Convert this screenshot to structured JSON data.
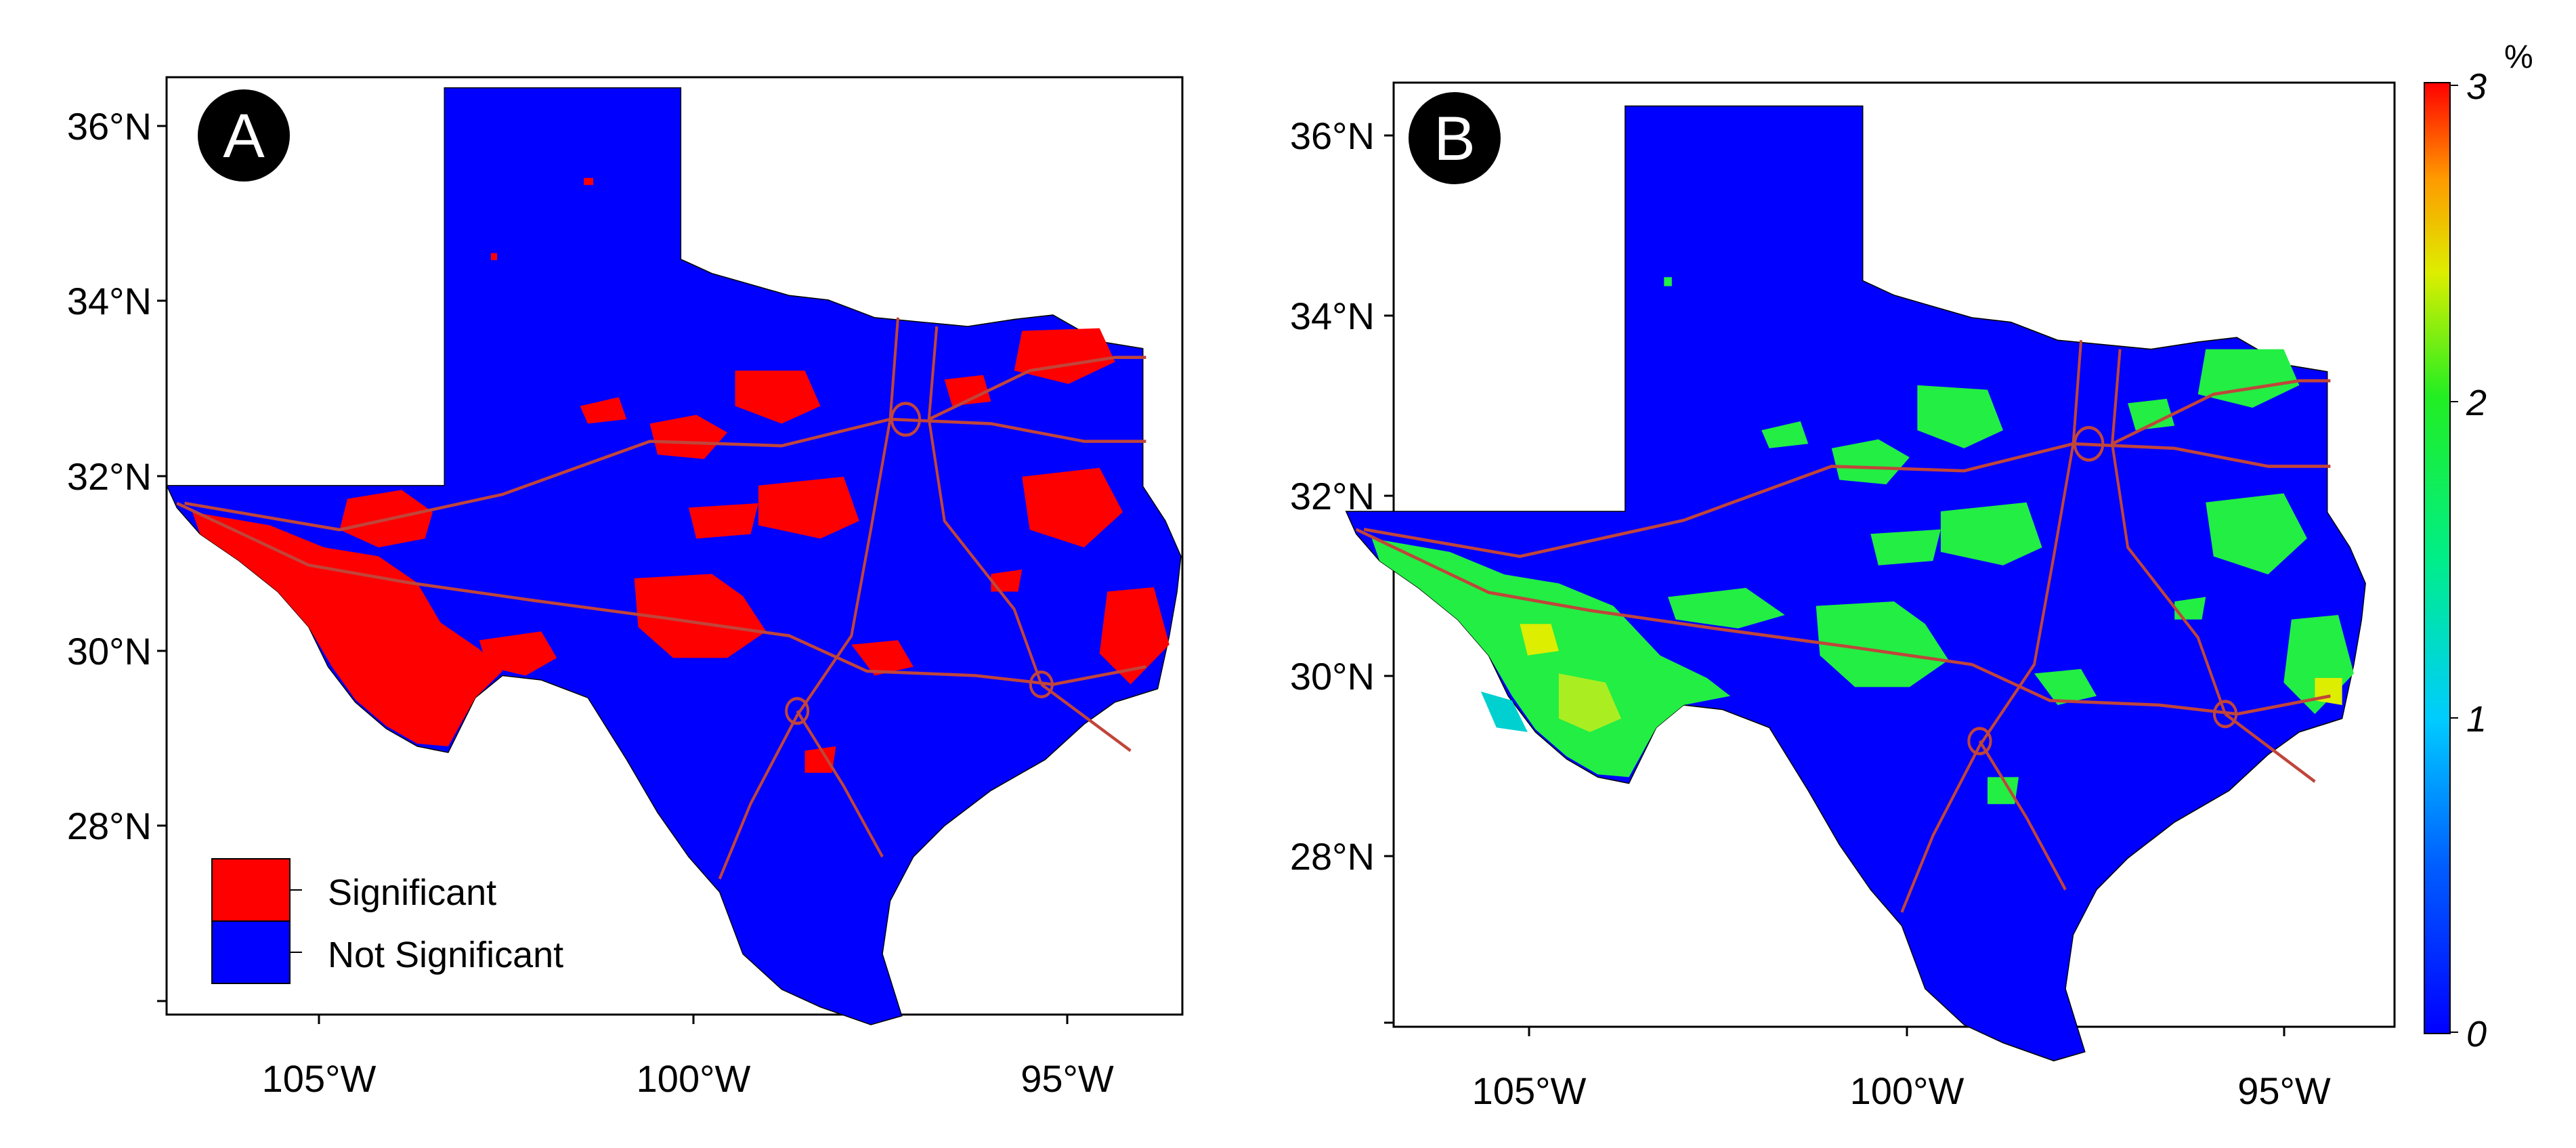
{
  "figure": {
    "panels": [
      {
        "id": "A",
        "label": "A",
        "y_ticks": [
          "36°N",
          "34°N",
          "32°N",
          "30°N",
          "28°N"
        ],
        "x_ticks": [
          "105°W",
          "100°W",
          "95°W"
        ],
        "legend": [
          {
            "label": "Significant",
            "color": "#ff0000"
          },
          {
            "label": "Not Significant",
            "color": "#0000ff"
          }
        ]
      },
      {
        "id": "B",
        "label": "B",
        "y_ticks": [
          "36°N",
          "34°N",
          "32°N",
          "30°N",
          "28°N"
        ],
        "x_ticks": [
          "105°W",
          "100°W",
          "95°W"
        ],
        "colorbar": {
          "unit": "%",
          "ticks": [
            "3",
            "2",
            "1",
            "0"
          ]
        }
      }
    ]
  },
  "colors": {
    "land": "#0000ff",
    "significant": "#ff0000",
    "roads": "#c0453a",
    "green": "#22ee44",
    "yellow": "#ddee00",
    "cyan": "#00d0d0"
  },
  "icons": {
    "panel_label": "circle-badge"
  }
}
